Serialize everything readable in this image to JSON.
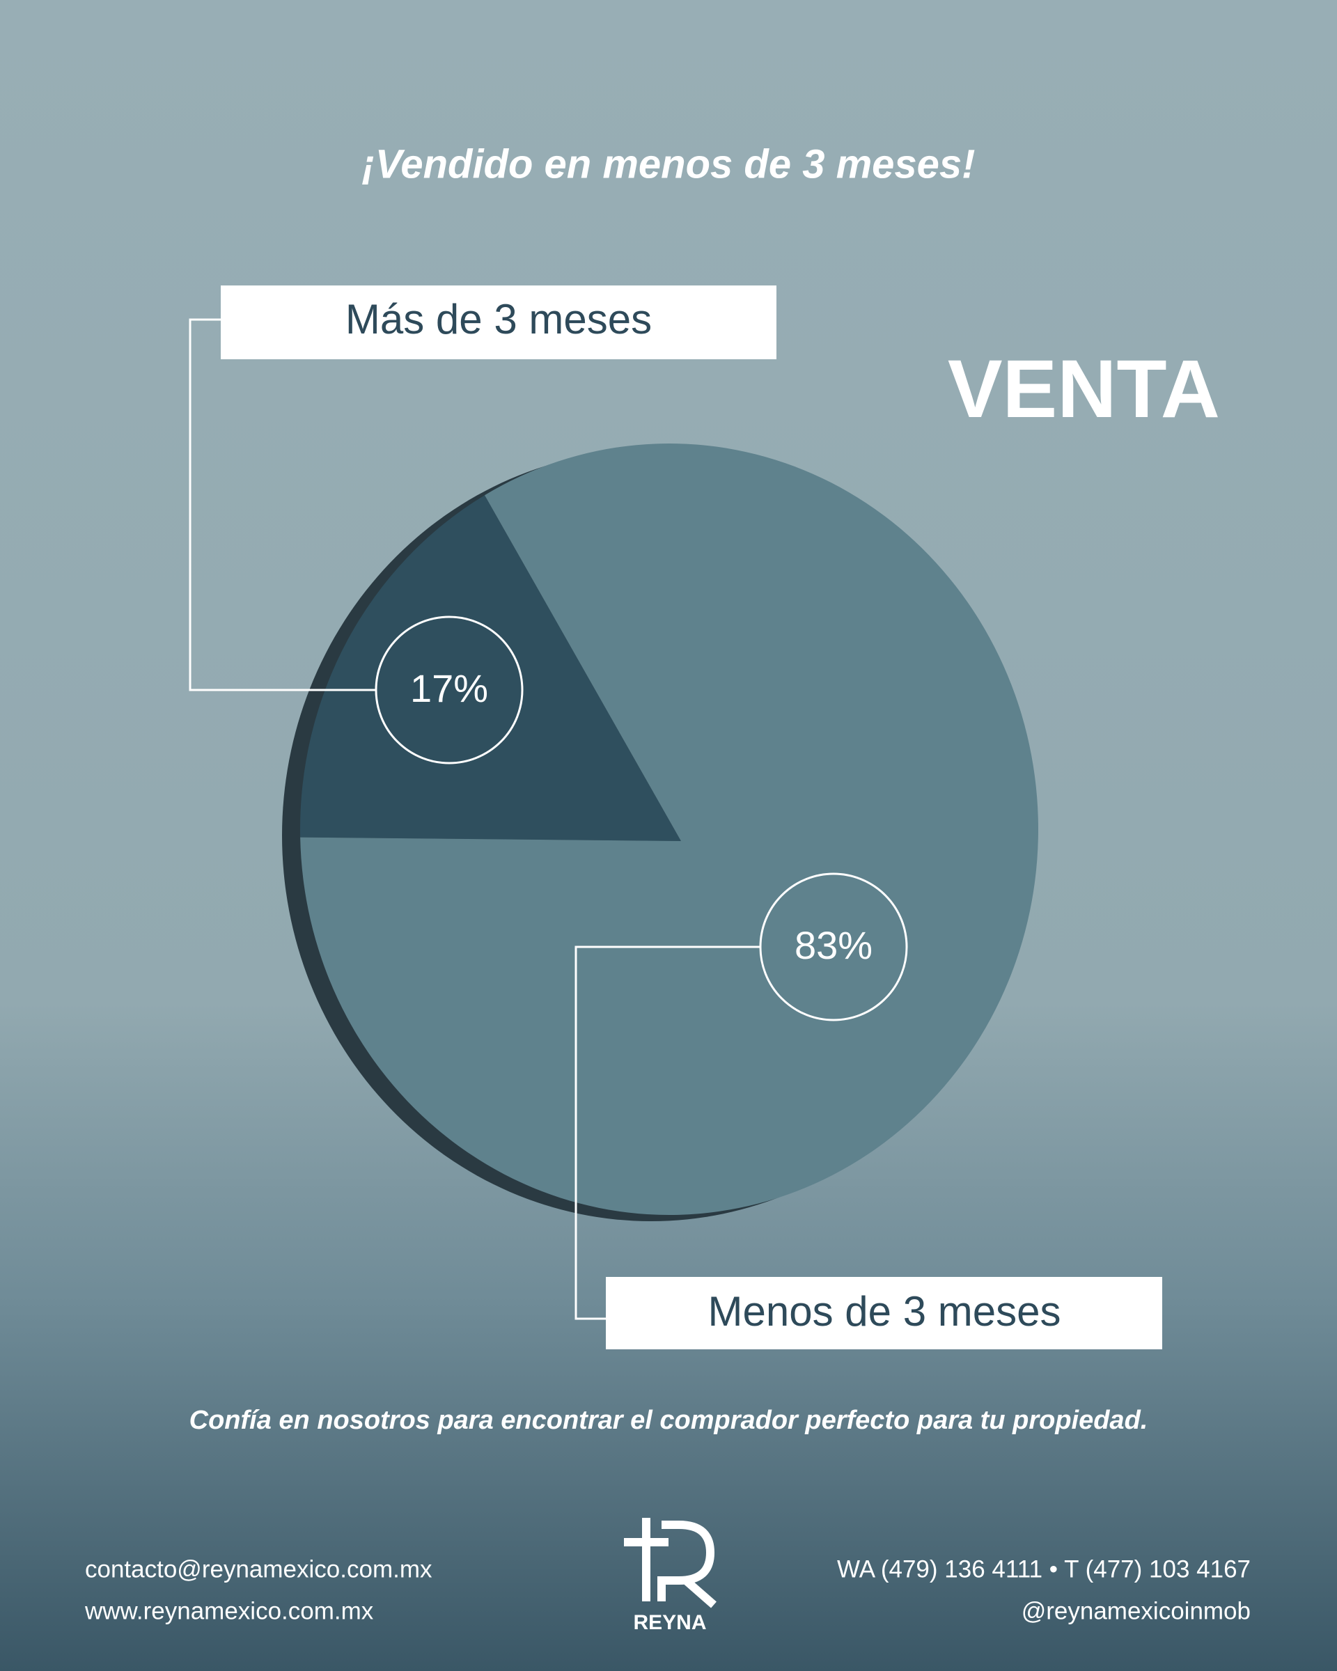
{
  "chart_data": {
    "type": "pie",
    "title": "¡Vendido en menos de 3 meses!",
    "categories": [
      "Más de 3 meses",
      "Menos de 3 meses"
    ],
    "values": [
      17,
      83
    ],
    "value_labels": [
      "17%",
      "83%"
    ],
    "colors": [
      "#2f4f5e",
      "#5f828d"
    ]
  },
  "badge": "VENTA",
  "tagline": "Confía en nosotros para encontrar el comprador perfecto para tu propiedad.",
  "footer": {
    "email": "contacto@reynamexico.com.mx",
    "web": "www.reynamexico.com.mx",
    "phones": "WA (479) 136 4111 • T (477) 103 4167",
    "social": "@reynamexicoinmob",
    "logo": "REYNA"
  }
}
